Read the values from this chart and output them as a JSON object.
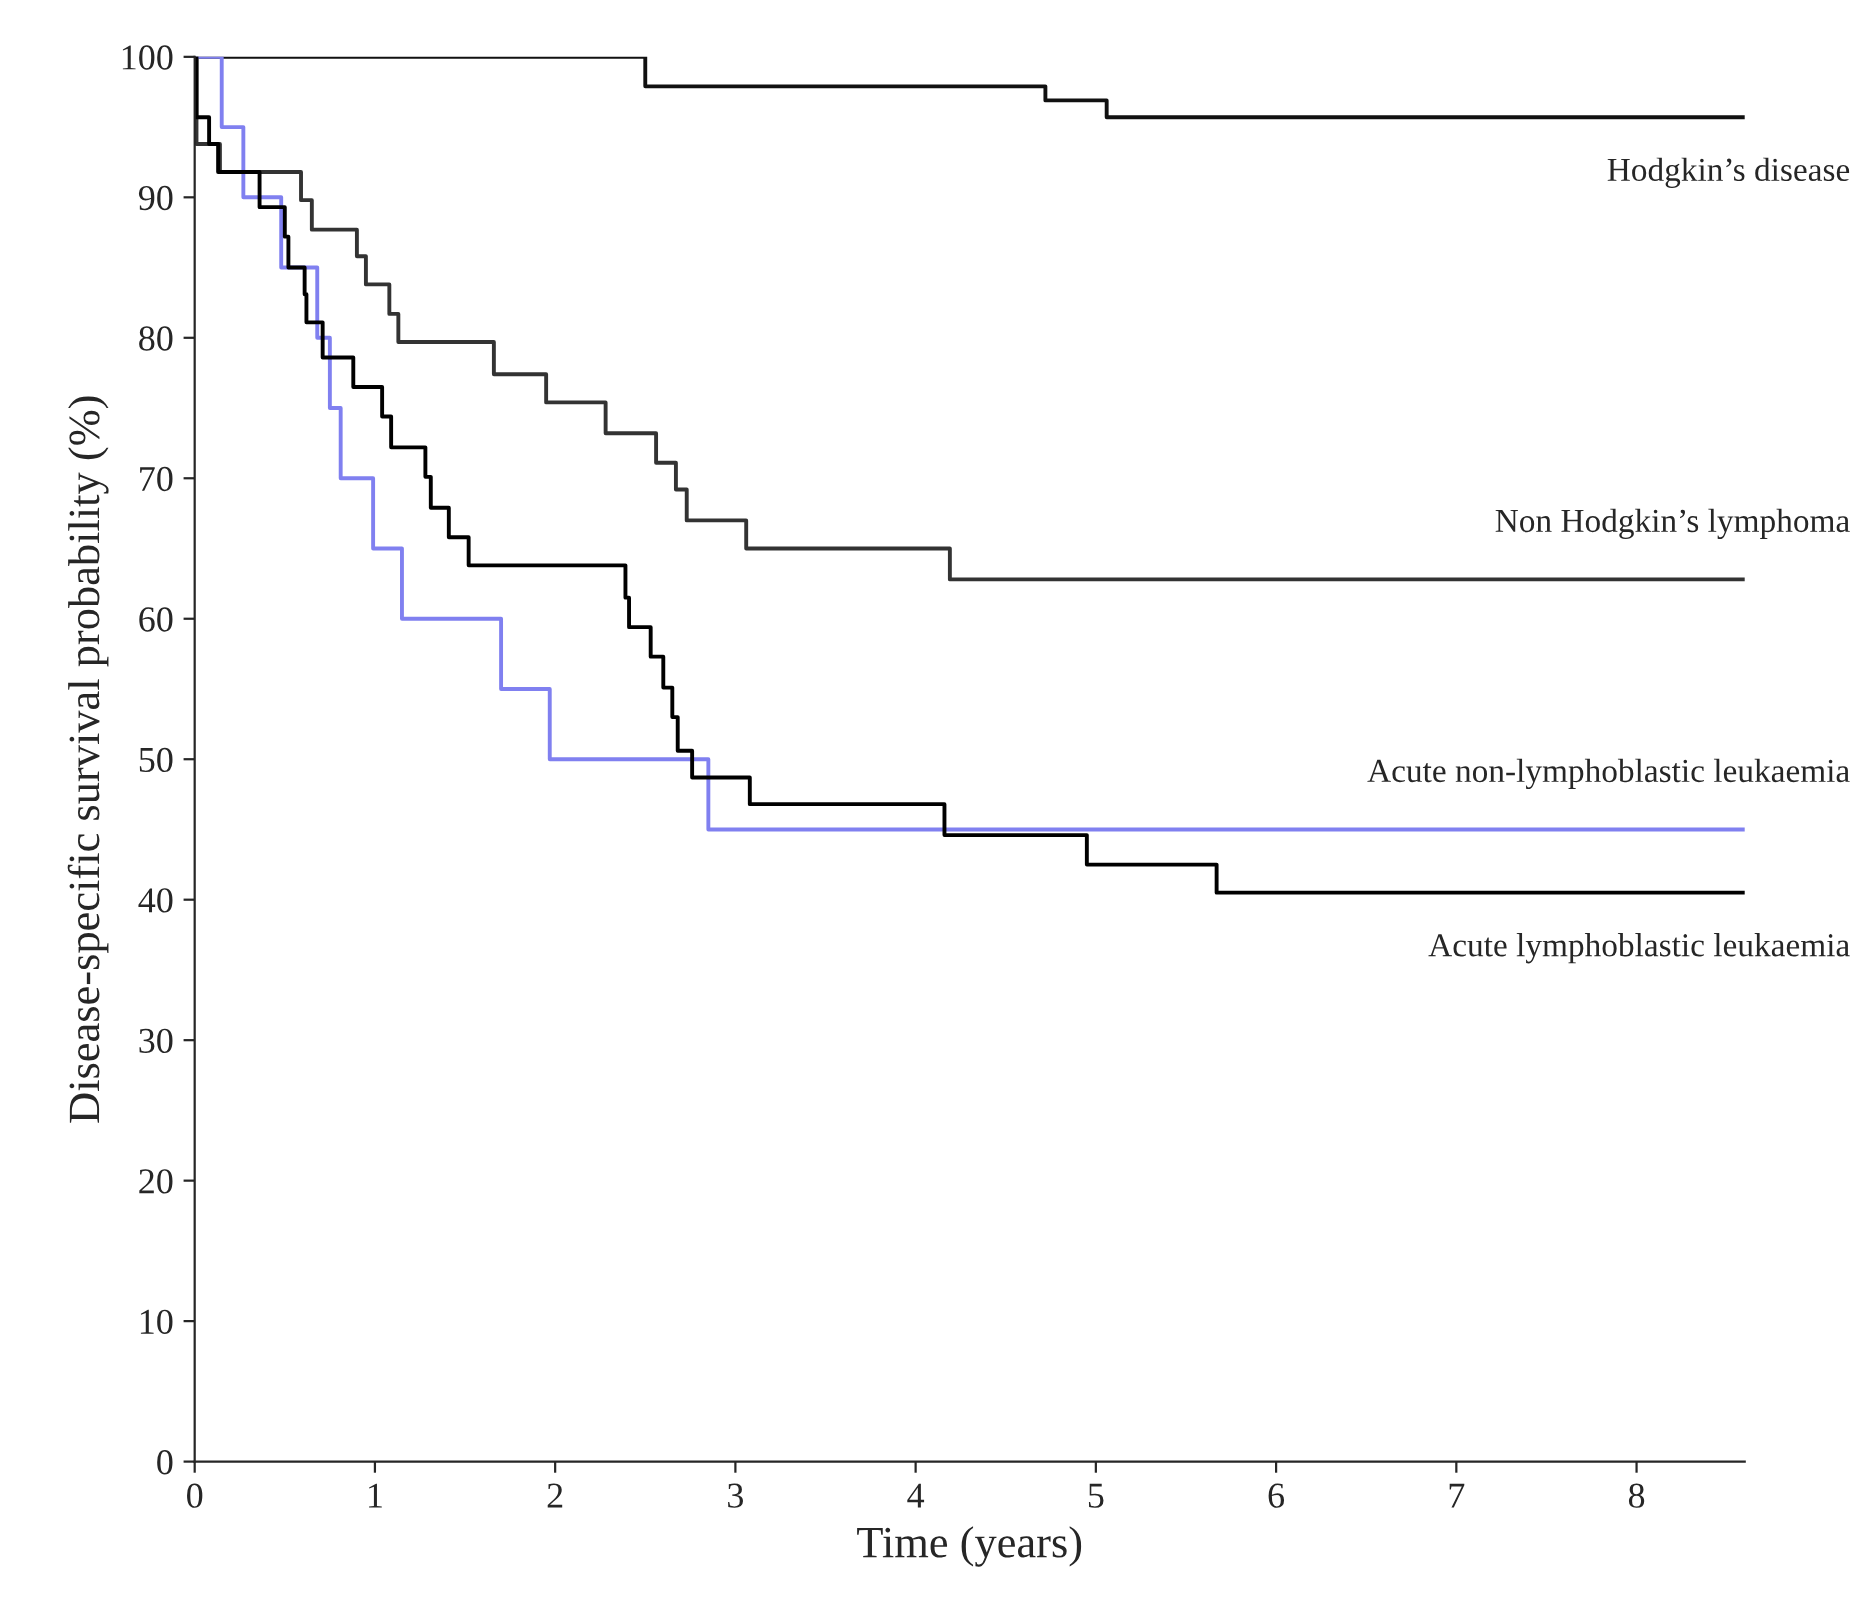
{
  "chart_data": {
    "type": "step",
    "xlabel": "Time (years)",
    "ylabel": "Disease-specific survival probability (%)",
    "xlim": [
      0,
      8.6
    ],
    "ylim": [
      0,
      100
    ],
    "xticks": [
      0,
      1,
      2,
      3,
      4,
      5,
      6,
      7,
      8
    ],
    "yticks": [
      0,
      10,
      20,
      30,
      40,
      50,
      60,
      70,
      80,
      90,
      100
    ],
    "grid": false,
    "legend": false,
    "marker": "none",
    "line_style": "solid",
    "series": [
      {
        "name": "Hodgkin’s disease",
        "color": "#111111",
        "x": [
          0,
          2.5,
          4.72,
          5.06,
          8.6
        ],
        "values": [
          100,
          97.9,
          96.9,
          95.7,
          95.7
        ]
      },
      {
        "name": "Non Hodgkin’s lymphoma",
        "color": "#333333",
        "x": [
          0,
          0.01,
          0.14,
          0.59,
          0.65,
          0.9,
          0.95,
          1.08,
          1.13,
          1.66,
          1.95,
          2.28,
          2.56,
          2.67,
          2.73,
          3.06,
          4.19,
          8.6
        ],
        "values": [
          100,
          93.8,
          91.8,
          89.8,
          87.7,
          85.8,
          83.8,
          81.7,
          79.7,
          77.4,
          75.4,
          73.2,
          71.1,
          69.2,
          67.0,
          65.0,
          62.8,
          62.8
        ]
      },
      {
        "name": "Acute non-lymphoblastic leukaemia",
        "color": "#8080f0",
        "x": [
          0,
          0.15,
          0.27,
          0.48,
          0.68,
          0.75,
          0.81,
          0.99,
          1.15,
          1.7,
          1.97,
          2.85,
          8.6
        ],
        "values": [
          100,
          95,
          90,
          85,
          80,
          75,
          70,
          65,
          60,
          55,
          50,
          45,
          45
        ]
      },
      {
        "name": "Acute lymphoblastic leukaemia",
        "color": "#000000",
        "x": [
          0,
          0.01,
          0.08,
          0.13,
          0.36,
          0.5,
          0.52,
          0.61,
          0.62,
          0.71,
          0.88,
          1.04,
          1.09,
          1.28,
          1.31,
          1.41,
          1.52,
          2.39,
          2.41,
          2.53,
          2.6,
          2.65,
          2.68,
          2.76,
          3.08,
          4.16,
          4.95,
          5.67,
          8.6
        ],
        "values": [
          100,
          95.7,
          93.8,
          91.8,
          89.3,
          87.2,
          85.0,
          83.1,
          81.1,
          78.6,
          76.5,
          74.4,
          72.2,
          70.1,
          67.9,
          65.8,
          63.8,
          61.5,
          59.4,
          57.3,
          55.1,
          53.0,
          50.6,
          48.7,
          46.8,
          44.6,
          42.5,
          40.5,
          40.5
        ]
      }
    ]
  }
}
